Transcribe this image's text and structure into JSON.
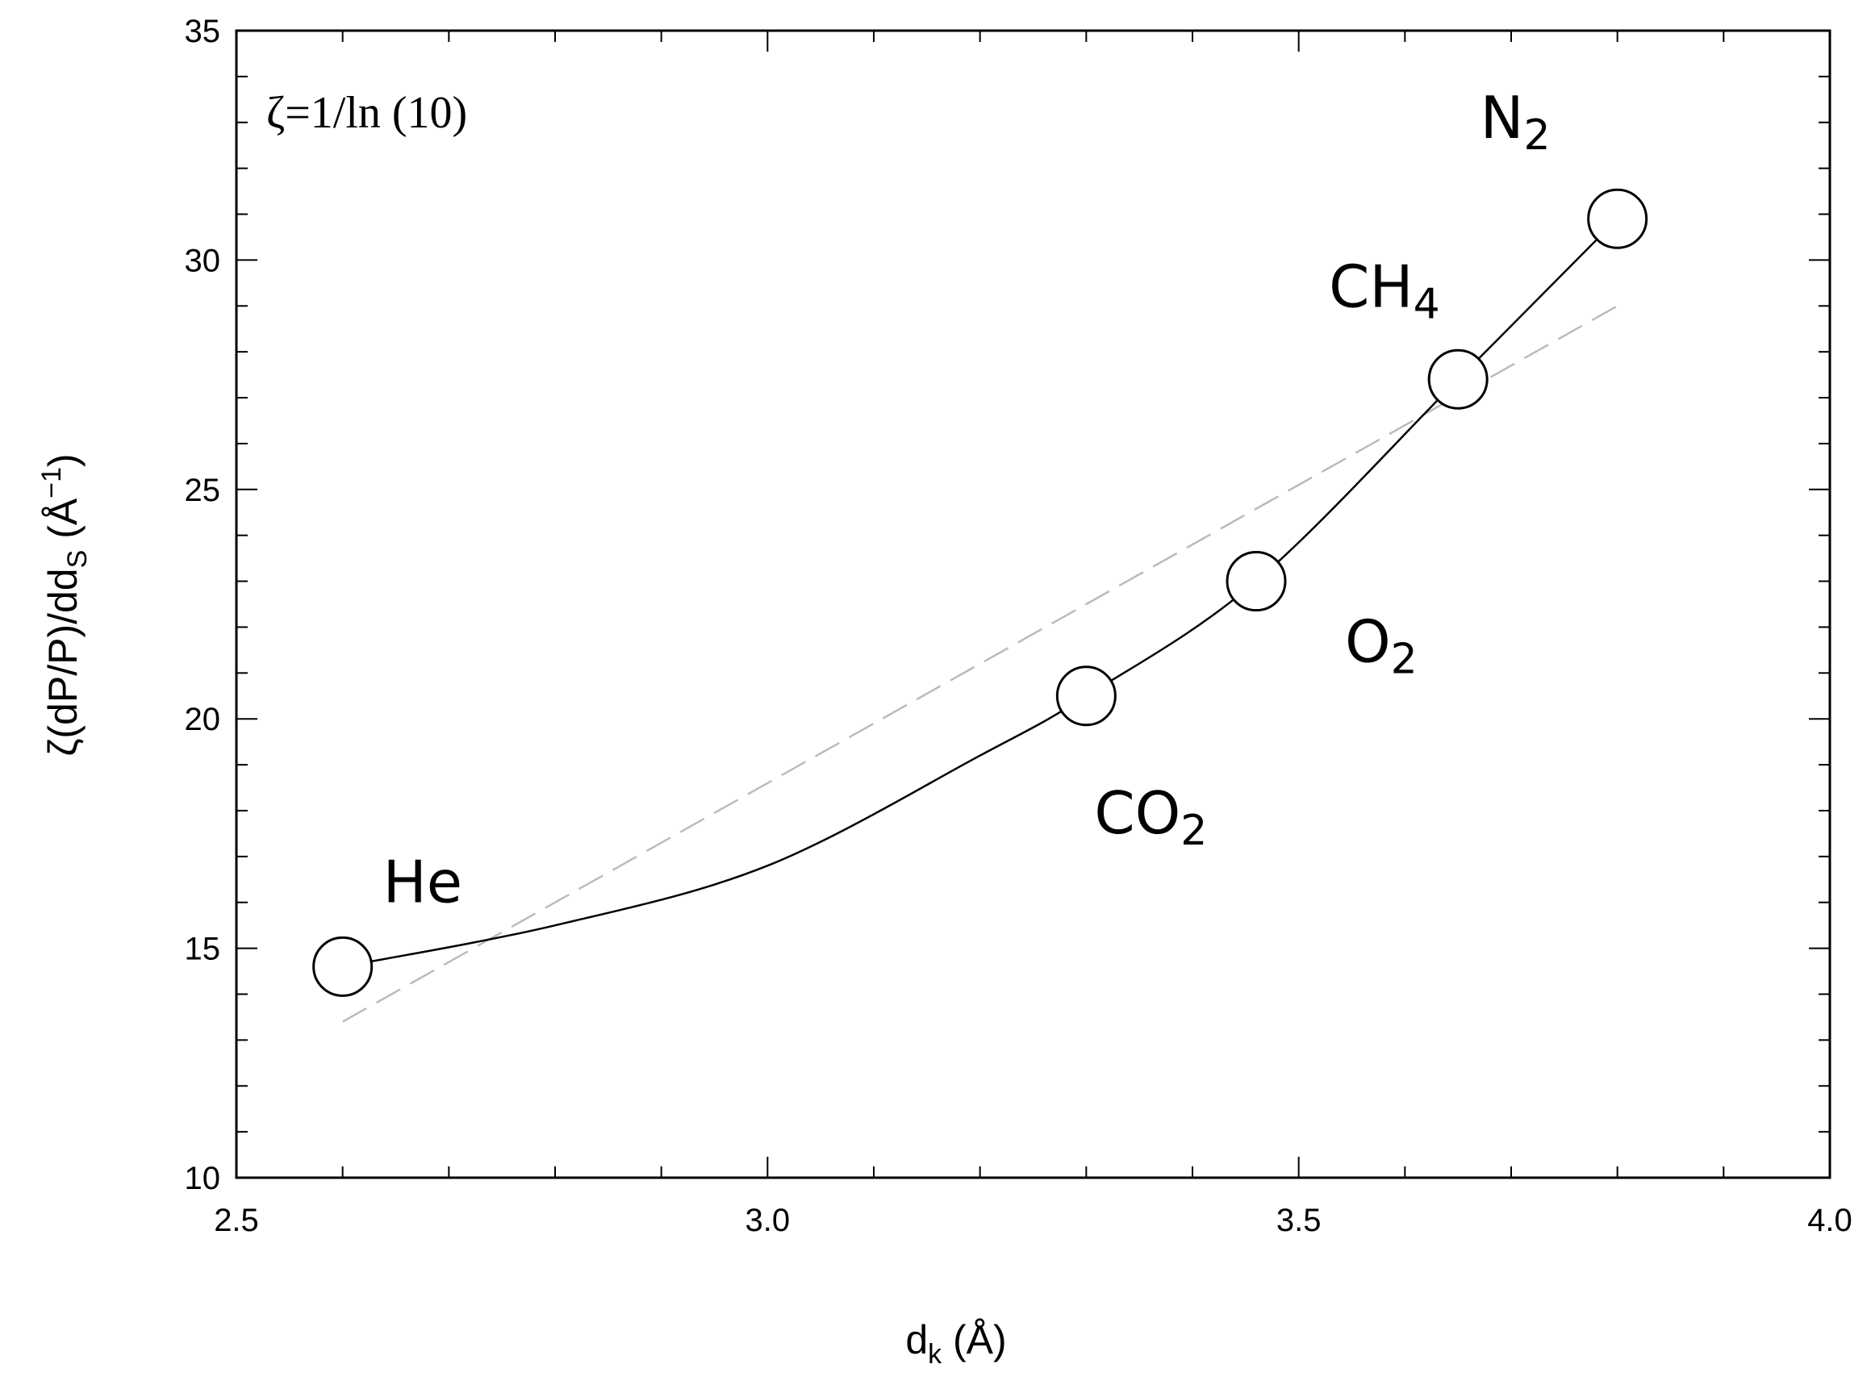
{
  "chart_data": {
    "type": "scatter",
    "annotation": "ζ=1/ln (10)",
    "xlabel": {
      "main": "d",
      "sub": "k",
      "unit": " (Å)"
    },
    "ylabel": {
      "main": "ζ(dP/P)/dd",
      "sub": "S",
      "unit_open": " (Å",
      "sup": "−1",
      "unit_close": ")"
    },
    "xlim": [
      2.5,
      4.0
    ],
    "ylim": [
      10,
      35
    ],
    "x_ticks": [
      2.5,
      3.0,
      3.5,
      4.0
    ],
    "x_tick_labels": [
      "2.5",
      "3.0",
      "3.5",
      "4.0"
    ],
    "y_ticks": [
      10,
      15,
      20,
      25,
      30,
      35
    ],
    "y_tick_labels": [
      "10",
      "15",
      "20",
      "25",
      "30",
      "35"
    ],
    "x_minor_step": 0.1,
    "y_minor_step": 1,
    "grid": false,
    "legend": "none",
    "points": [
      {
        "name": "He",
        "label_main": "He",
        "label_sub": "",
        "x": 2.6,
        "y": 14.6
      },
      {
        "name": "CO2",
        "label_main": "CO",
        "label_sub": "2",
        "x": 3.3,
        "y": 20.5
      },
      {
        "name": "O2",
        "label_main": "O",
        "label_sub": "2",
        "x": 3.46,
        "y": 23.0
      },
      {
        "name": "CH4",
        "label_main": "CH",
        "label_sub": "4",
        "x": 3.65,
        "y": 27.4
      },
      {
        "name": "N2",
        "label_main": "N",
        "label_sub": "2",
        "x": 3.8,
        "y": 30.9
      }
    ],
    "series": [
      {
        "style": "solid-black",
        "x": [
          2.6,
          2.8,
          3.0,
          3.2,
          3.3,
          3.46,
          3.65,
          3.8
        ],
        "y": [
          14.6,
          15.5,
          16.8,
          19.2,
          20.5,
          23.0,
          27.4,
          30.9
        ]
      },
      {
        "style": "dashed-gray",
        "x": [
          2.6,
          3.8
        ],
        "y": [
          13.4,
          29.0
        ]
      }
    ],
    "colors": {
      "marker_fill": "#ffffff",
      "marker_stroke": "#000000",
      "fit_line": "#000000",
      "trend_line": "#bbbbbb"
    }
  }
}
